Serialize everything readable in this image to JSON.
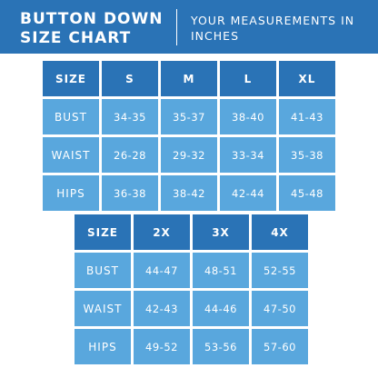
{
  "header": {
    "title_line1": "BUTTON DOWN",
    "title_line2": "SIZE CHART",
    "subtitle_line1": "YOUR MEASUREMENTS IN",
    "subtitle_line2": "INCHES"
  },
  "colors": {
    "dark_blue": "#2a73b6",
    "light_blue": "#59a7dd",
    "text": "#ffffff"
  },
  "table1": {
    "header_label": "SIZE",
    "sizes": [
      "S",
      "M",
      "L",
      "XL"
    ],
    "rows": [
      {
        "label": "BUST",
        "values": [
          "34-35",
          "35-37",
          "38-40",
          "41-43"
        ]
      },
      {
        "label": "WAIST",
        "values": [
          "26-28",
          "29-32",
          "33-34",
          "35-38"
        ]
      },
      {
        "label": "HIPS",
        "values": [
          "36-38",
          "38-42",
          "42-44",
          "45-48"
        ]
      }
    ]
  },
  "table2": {
    "header_label": "SIZE",
    "sizes": [
      "2X",
      "3X",
      "4X"
    ],
    "rows": [
      {
        "label": "BUST",
        "values": [
          "44-47",
          "48-51",
          "52-55"
        ]
      },
      {
        "label": "WAIST",
        "values": [
          "42-43",
          "44-46",
          "47-50"
        ]
      },
      {
        "label": "HIPS",
        "values": [
          "49-52",
          "53-56",
          "57-60"
        ]
      }
    ]
  }
}
